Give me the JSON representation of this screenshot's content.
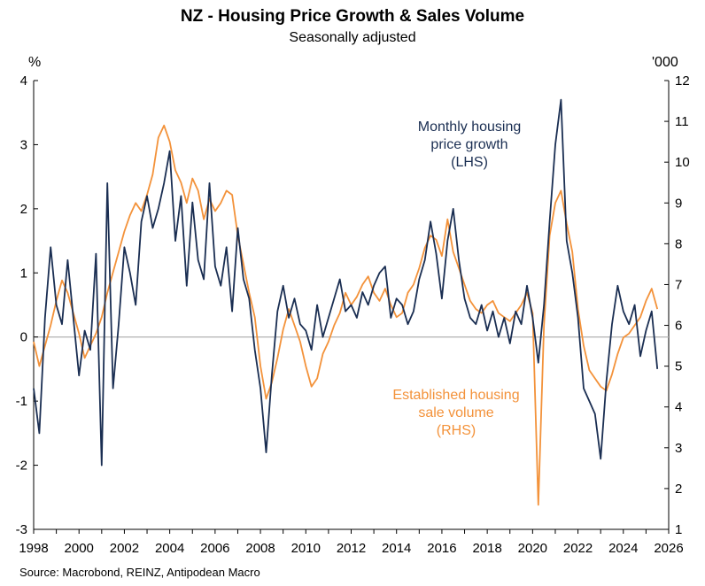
{
  "chart_data": {
    "type": "line",
    "title": "NZ - Housing Price Growth & Sales Volume",
    "subtitle": "Seasonally adjusted",
    "source": "Source: Macrobond, REINZ, Antipodean Macro",
    "left_axis": {
      "unit": "%",
      "ylim": [
        -3,
        4
      ],
      "ticks": [
        "4",
        "3",
        "2",
        "1",
        "0",
        "-1",
        "-2",
        "-3"
      ]
    },
    "right_axis": {
      "unit": "'000",
      "ylim": [
        1,
        12
      ],
      "ticks": [
        "12",
        "11",
        "10",
        "9",
        "8",
        "7",
        "6",
        "5",
        "4",
        "3",
        "2",
        "1"
      ]
    },
    "x_axis": {
      "xlim": [
        1998,
        2026
      ],
      "ticks": [
        "1998",
        "2000",
        "2002",
        "2004",
        "2006",
        "2008",
        "2010",
        "2012",
        "2014",
        "2016",
        "2018",
        "2020",
        "2022",
        "2024",
        "2026"
      ]
    },
    "zero_line": true,
    "colors": {
      "price": "#1a2e52",
      "volume": "#f3923a",
      "axis": "#000000",
      "zero": "#b3b3b3"
    },
    "annotations": {
      "price_line1": "Monthly housing",
      "price_line2": "price growth",
      "price_line3": "(LHS)",
      "volume_line1": "Established housing",
      "volume_line2": "sale volume",
      "volume_line3": "(RHS)"
    },
    "series": [
      {
        "name": "Monthly housing price growth (LHS)",
        "axis": "left",
        "x": [
          1998.0,
          1998.25,
          1998.5,
          1998.75,
          1999.0,
          1999.25,
          1999.5,
          1999.75,
          2000.0,
          2000.25,
          2000.5,
          2000.75,
          2001.0,
          2001.25,
          2001.5,
          2001.75,
          2002.0,
          2002.25,
          2002.5,
          2002.75,
          2003.0,
          2003.25,
          2003.5,
          2003.75,
          2004.0,
          2004.25,
          2004.5,
          2004.75,
          2005.0,
          2005.25,
          2005.5,
          2005.75,
          2006.0,
          2006.25,
          2006.5,
          2006.75,
          2007.0,
          2007.25,
          2007.5,
          2007.75,
          2008.0,
          2008.25,
          2008.5,
          2008.75,
          2009.0,
          2009.25,
          2009.5,
          2009.75,
          2010.0,
          2010.25,
          2010.5,
          2010.75,
          2011.0,
          2011.25,
          2011.5,
          2011.75,
          2012.0,
          2012.25,
          2012.5,
          2012.75,
          2013.0,
          2013.25,
          2013.5,
          2013.75,
          2014.0,
          2014.25,
          2014.5,
          2014.75,
          2015.0,
          2015.25,
          2015.5,
          2015.75,
          2016.0,
          2016.25,
          2016.5,
          2016.75,
          2017.0,
          2017.25,
          2017.5,
          2017.75,
          2018.0,
          2018.25,
          2018.5,
          2018.75,
          2019.0,
          2019.25,
          2019.5,
          2019.75,
          2020.0,
          2020.25,
          2020.5,
          2020.75,
          2021.0,
          2021.25,
          2021.5,
          2021.75,
          2022.0,
          2022.25,
          2022.5,
          2022.75,
          2023.0,
          2023.25,
          2023.5,
          2023.75,
          2024.0,
          2024.25,
          2024.5,
          2024.75,
          2025.0,
          2025.25,
          2025.5
        ],
        "values": [
          -0.8,
          -1.5,
          0.3,
          1.4,
          0.5,
          0.2,
          1.2,
          0.3,
          -0.6,
          0.1,
          -0.2,
          1.3,
          -2.0,
          2.4,
          -0.8,
          0.2,
          1.4,
          1.0,
          0.5,
          1.8,
          2.2,
          1.7,
          2.0,
          2.4,
          2.9,
          1.5,
          2.2,
          0.8,
          2.1,
          1.2,
          0.9,
          2.4,
          1.1,
          0.8,
          1.4,
          0.4,
          1.7,
          0.9,
          0.6,
          -0.2,
          -0.8,
          -1.8,
          -0.6,
          0.4,
          0.8,
          0.3,
          0.6,
          0.2,
          0.1,
          -0.2,
          0.5,
          0.0,
          0.3,
          0.6,
          0.9,
          0.4,
          0.5,
          0.3,
          0.7,
          0.5,
          0.8,
          1.0,
          1.1,
          0.3,
          0.6,
          0.5,
          0.2,
          0.4,
          0.9,
          1.2,
          1.8,
          1.3,
          0.6,
          1.5,
          2.0,
          1.2,
          0.6,
          0.3,
          0.2,
          0.5,
          0.1,
          0.4,
          0.0,
          0.3,
          -0.1,
          0.4,
          0.2,
          0.8,
          0.3,
          -0.4,
          0.5,
          1.8,
          3.0,
          3.7,
          1.5,
          1.0,
          0.3,
          -0.8,
          -1.0,
          -1.2,
          -1.9,
          -0.7,
          0.2,
          0.8,
          0.4,
          0.2,
          0.5,
          -0.3,
          0.1,
          0.4,
          -0.5
        ]
      },
      {
        "name": "Established housing sale volume (RHS)",
        "axis": "right",
        "x": [
          1998.0,
          1998.25,
          1998.5,
          1998.75,
          1999.0,
          1999.25,
          1999.5,
          1999.75,
          2000.0,
          2000.25,
          2000.5,
          2000.75,
          2001.0,
          2001.25,
          2001.5,
          2001.75,
          2002.0,
          2002.25,
          2002.5,
          2002.75,
          2003.0,
          2003.25,
          2003.5,
          2003.75,
          2004.0,
          2004.25,
          2004.5,
          2004.75,
          2005.0,
          2005.25,
          2005.5,
          2005.75,
          2006.0,
          2006.25,
          2006.5,
          2006.75,
          2007.0,
          2007.25,
          2007.5,
          2007.75,
          2008.0,
          2008.25,
          2008.5,
          2008.75,
          2009.0,
          2009.25,
          2009.5,
          2009.75,
          2010.0,
          2010.25,
          2010.5,
          2010.75,
          2011.0,
          2011.25,
          2011.5,
          2011.75,
          2012.0,
          2012.25,
          2012.5,
          2012.75,
          2013.0,
          2013.25,
          2013.5,
          2013.75,
          2014.0,
          2014.25,
          2014.5,
          2014.75,
          2015.0,
          2015.25,
          2015.5,
          2015.75,
          2016.0,
          2016.25,
          2016.5,
          2016.75,
          2017.0,
          2017.25,
          2017.5,
          2017.75,
          2018.0,
          2018.25,
          2018.5,
          2018.75,
          2019.0,
          2019.25,
          2019.5,
          2019.75,
          2020.0,
          2020.25,
          2020.5,
          2020.75,
          2021.0,
          2021.25,
          2021.5,
          2021.75,
          2022.0,
          2022.25,
          2022.5,
          2022.75,
          2023.0,
          2023.25,
          2023.5,
          2023.75,
          2024.0,
          2024.25,
          2024.5,
          2024.75,
          2025.0,
          2025.25,
          2025.5
        ],
        "values": [
          5.6,
          5.0,
          5.5,
          6.0,
          6.6,
          7.1,
          6.8,
          6.3,
          5.8,
          5.2,
          5.5,
          5.8,
          6.2,
          6.8,
          7.3,
          7.8,
          8.3,
          8.7,
          9.0,
          8.8,
          9.2,
          9.7,
          10.6,
          10.9,
          10.5,
          9.8,
          9.5,
          9.0,
          9.6,
          9.3,
          8.6,
          9.1,
          8.8,
          9.0,
          9.3,
          9.2,
          8.2,
          7.5,
          6.8,
          6.2,
          5.0,
          4.2,
          4.6,
          5.2,
          5.9,
          6.4,
          6.0,
          5.6,
          5.0,
          4.5,
          4.7,
          5.3,
          5.6,
          6.0,
          6.3,
          6.8,
          6.5,
          6.7,
          7.0,
          7.2,
          6.8,
          6.6,
          6.9,
          6.5,
          6.2,
          6.3,
          6.8,
          7.0,
          7.4,
          7.9,
          8.2,
          8.1,
          7.7,
          8.6,
          7.8,
          7.4,
          7.0,
          6.6,
          6.4,
          6.3,
          6.5,
          6.6,
          6.3,
          6.2,
          6.1,
          6.3,
          6.5,
          6.8,
          6.3,
          1.6,
          6.0,
          8.2,
          9.0,
          9.3,
          8.5,
          7.8,
          6.4,
          5.5,
          4.9,
          4.7,
          4.5,
          4.4,
          4.8,
          5.3,
          5.7,
          5.8,
          6.0,
          6.2,
          6.6,
          6.9,
          6.4
        ]
      }
    ]
  }
}
